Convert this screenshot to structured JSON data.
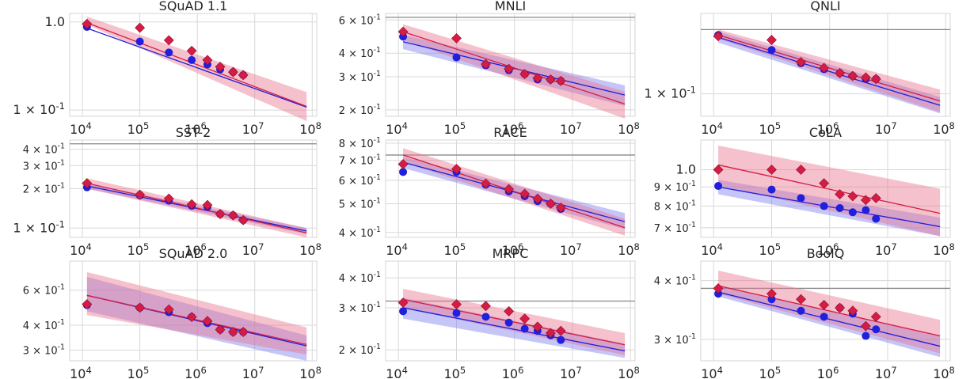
{
  "colors": {
    "blue": "#1f1fdd",
    "red": "#d61c44",
    "red_fill": "#e8758f",
    "blue_fill": "#7f7ff0",
    "grid": "#d8d8d8",
    "baseline": "#888888"
  },
  "chart_data": [
    {
      "type": "scatter",
      "title": "SQuAD 1.1",
      "xscale": "log",
      "yscale": "log",
      "xlim": [
        6000,
        120000000
      ],
      "ylim": [
        0.085,
        1.25
      ],
      "x_ticks": [
        "10^4",
        "10^5",
        "10^6",
        "10^7",
        "10^8"
      ],
      "y_ticks": [
        {
          "value": 1.0,
          "label": "1.0"
        },
        {
          "value": 0.1,
          "label": "1 × 10^-1"
        }
      ],
      "baseline": null,
      "x": [
        12000,
        100000,
        320000,
        800000,
        1500000,
        2500000,
        4200000,
        6300000
      ],
      "series": [
        {
          "color": "blue",
          "marker": "circle",
          "values": [
            0.88,
            0.6,
            0.45,
            0.37,
            0.33,
            0.29,
            0.27,
            0.25
          ]
        },
        {
          "color": "red",
          "marker": "diamond",
          "values": [
            0.95,
            0.86,
            0.62,
            0.47,
            0.37,
            0.31,
            0.27,
            0.25
          ]
        }
      ],
      "fits": [
        {
          "color": "blue",
          "x0": 12000,
          "y0": 0.85,
          "x1": 80000000,
          "y1": 0.108,
          "band_lo": [
            0.85,
            0.108
          ],
          "band_hi": [
            0.85,
            0.108
          ]
        },
        {
          "color": "red",
          "x0": 12000,
          "y0": 0.98,
          "x1": 80000000,
          "y1": 0.11,
          "band_lo": [
            0.93,
            0.075
          ],
          "band_hi": [
            1.15,
            0.16
          ]
        }
      ]
    },
    {
      "type": "scatter",
      "title": "MNLI",
      "xscale": "log",
      "yscale": "log",
      "xlim": [
        6000,
        120000000
      ],
      "ylim": [
        0.185,
        0.65
      ],
      "x_ticks": [
        "10^4",
        "10^5",
        "10^6",
        "10^7",
        "10^8"
      ],
      "y_ticks": [
        {
          "value": 0.6,
          "label": "6 × 10^-1"
        },
        {
          "value": 0.4,
          "label": "4 × 10^-1"
        },
        {
          "value": 0.3,
          "label": "3 × 10^-1"
        },
        {
          "value": 0.2,
          "label": "2 × 10^-1"
        }
      ],
      "baseline": 0.62,
      "x": [
        12000,
        100000,
        320000,
        800000,
        1500000,
        2500000,
        4200000,
        6300000
      ],
      "series": [
        {
          "color": "blue",
          "marker": "circle",
          "values": [
            0.49,
            0.38,
            0.345,
            0.325,
            0.31,
            0.29,
            0.29,
            0.285
          ]
        },
        {
          "color": "red",
          "marker": "diamond",
          "values": [
            0.52,
            0.48,
            0.35,
            0.33,
            0.31,
            0.295,
            0.29,
            0.285
          ]
        }
      ],
      "fits": [
        {
          "color": "blue",
          "x0": 12000,
          "y0": 0.46,
          "x1": 80000000,
          "y1": 0.24,
          "band_lo": [
            0.42,
            0.21
          ],
          "band_hi": [
            0.5,
            0.27
          ]
        },
        {
          "color": "red",
          "x0": 12000,
          "y0": 0.52,
          "x1": 80000000,
          "y1": 0.215,
          "band_lo": [
            0.47,
            0.18
          ],
          "band_hi": [
            0.57,
            0.25
          ]
        }
      ]
    },
    {
      "type": "scatter",
      "title": "QNLI",
      "xscale": "log",
      "yscale": "log",
      "xlim": [
        6000,
        120000000
      ],
      "ylim": [
        0.06,
        0.62
      ],
      "x_ticks": [
        "10^4",
        "10^5",
        "10^6",
        "10^7",
        "10^8"
      ],
      "y_ticks": [
        {
          "value": 0.1,
          "label": "1 × 10^-1"
        }
      ],
      "baseline": 0.43,
      "x": [
        12000,
        100000,
        320000,
        800000,
        1500000,
        2500000,
        4200000,
        6300000
      ],
      "series": [
        {
          "color": "blue",
          "marker": "circle",
          "values": [
            0.38,
            0.27,
            0.2,
            0.175,
            0.16,
            0.15,
            0.14,
            0.14
          ]
        },
        {
          "color": "red",
          "marker": "diamond",
          "values": [
            0.37,
            0.34,
            0.205,
            0.18,
            0.16,
            0.15,
            0.145,
            0.14
          ]
        }
      ],
      "fits": [
        {
          "color": "blue",
          "x0": 12000,
          "y0": 0.36,
          "x1": 80000000,
          "y1": 0.077,
          "band_lo": [
            0.32,
            0.064
          ],
          "band_hi": [
            0.41,
            0.093
          ]
        },
        {
          "color": "red",
          "x0": 12000,
          "y0": 0.38,
          "x1": 80000000,
          "y1": 0.085,
          "band_lo": [
            0.35,
            0.066
          ],
          "band_hi": [
            0.43,
            0.11
          ]
        }
      ]
    },
    {
      "type": "scatter",
      "title": "SST-2",
      "xscale": "log",
      "yscale": "log",
      "xlim": [
        6000,
        120000000
      ],
      "ylim": [
        0.085,
        0.47
      ],
      "x_ticks": [
        "10^4",
        "10^5",
        "10^6",
        "10^7",
        "10^8"
      ],
      "y_ticks": [
        {
          "value": 0.4,
          "label": "4 × 10^-1"
        },
        {
          "value": 0.3,
          "label": "3 × 10^-1"
        },
        {
          "value": 0.2,
          "label": "2 × 10^-1"
        },
        {
          "value": 0.1,
          "label": "1 × 10^-1"
        }
      ],
      "baseline": 0.44,
      "x": [
        12000,
        100000,
        320000,
        800000,
        1500000,
        2500000,
        4200000,
        6300000
      ],
      "series": [
        {
          "color": "blue",
          "marker": "circle",
          "values": [
            0.205,
            0.178,
            0.162,
            0.148,
            0.145,
            0.128,
            0.125,
            0.115
          ]
        },
        {
          "color": "red",
          "marker": "diamond",
          "values": [
            0.22,
            0.18,
            0.168,
            0.152,
            0.15,
            0.128,
            0.125,
            0.115
          ]
        }
      ],
      "fits": [
        {
          "color": "blue",
          "x0": 12000,
          "y0": 0.21,
          "x1": 80000000,
          "y1": 0.095,
          "band_lo": [
            0.2,
            0.09
          ],
          "band_hi": [
            0.22,
            0.1
          ]
        },
        {
          "color": "red",
          "x0": 12000,
          "y0": 0.22,
          "x1": 80000000,
          "y1": 0.092,
          "band_lo": [
            0.2,
            0.085
          ],
          "band_hi": [
            0.24,
            0.1
          ]
        }
      ]
    },
    {
      "type": "scatter",
      "title": "RACE",
      "xscale": "log",
      "yscale": "log",
      "xlim": [
        6000,
        120000000
      ],
      "ylim": [
        0.385,
        0.82
      ],
      "x_ticks": [
        "10^4",
        "10^5",
        "10^6",
        "10^7",
        "10^8"
      ],
      "y_ticks": [
        {
          "value": 0.8,
          "label": "8 × 10^-1"
        },
        {
          "value": 0.7,
          "label": "7 × 10^-1"
        },
        {
          "value": 0.6,
          "label": "6 × 10^-1"
        },
        {
          "value": 0.5,
          "label": "5 × 10^-1"
        },
        {
          "value": 0.4,
          "label": "4 × 10^-1"
        }
      ],
      "baseline": 0.73,
      "x": [
        12000,
        100000,
        320000,
        800000,
        1500000,
        2500000,
        4200000,
        6300000
      ],
      "series": [
        {
          "color": "blue",
          "marker": "circle",
          "values": [
            0.64,
            0.64,
            0.58,
            0.55,
            0.53,
            0.51,
            0.5,
            0.48
          ]
        },
        {
          "color": "red",
          "marker": "diamond",
          "values": [
            0.68,
            0.655,
            0.585,
            0.56,
            0.54,
            0.52,
            0.5,
            0.485
          ]
        }
      ],
      "fits": [
        {
          "color": "blue",
          "x0": 12000,
          "y0": 0.69,
          "x1": 80000000,
          "y1": 0.435,
          "band_lo": [
            0.66,
            0.41
          ],
          "band_hi": [
            0.72,
            0.465
          ]
        },
        {
          "color": "red",
          "x0": 12000,
          "y0": 0.73,
          "x1": 80000000,
          "y1": 0.415,
          "band_lo": [
            0.69,
            0.39
          ],
          "band_hi": [
            0.77,
            0.445
          ]
        }
      ]
    },
    {
      "type": "scatter",
      "title": "CoLA",
      "xscale": "log",
      "yscale": "log",
      "xlim": [
        6000,
        120000000
      ],
      "ylim": [
        0.66,
        1.2
      ],
      "x_ticks": [
        "10^4",
        "10^5",
        "10^6",
        "10^7",
        "10^8"
      ],
      "y_ticks": [
        {
          "value": 1.0,
          "label": "1.0"
        },
        {
          "value": 0.9,
          "label": "9 × 10^-1"
        },
        {
          "value": 0.8,
          "label": "8 × 10^-1"
        },
        {
          "value": 0.7,
          "label": "7 × 10^-1"
        }
      ],
      "baseline": null,
      "x": [
        12000,
        100000,
        320000,
        800000,
        1500000,
        2500000,
        4200000,
        6300000
      ],
      "series": [
        {
          "color": "blue",
          "marker": "circle",
          "values": [
            0.905,
            0.885,
            0.84,
            0.8,
            0.79,
            0.77,
            0.78,
            0.74
          ]
        },
        {
          "color": "red",
          "marker": "diamond",
          "values": [
            1.0,
            1.0,
            1.0,
            0.92,
            0.86,
            0.85,
            0.83,
            0.84
          ]
        }
      ],
      "fits": [
        {
          "color": "blue",
          "x0": 12000,
          "y0": 0.9,
          "x1": 80000000,
          "y1": 0.705,
          "band_lo": [
            0.86,
            0.665
          ],
          "band_hi": [
            0.94,
            0.745
          ]
        },
        {
          "color": "red",
          "x0": 12000,
          "y0": 1.03,
          "x1": 80000000,
          "y1": 0.765,
          "band_lo": [
            0.91,
            0.665
          ],
          "band_hi": [
            1.16,
            0.89
          ]
        }
      ]
    },
    {
      "type": "scatter",
      "title": "SQuAD 2.0",
      "xscale": "log",
      "yscale": "log",
      "xlim": [
        6000,
        120000000
      ],
      "ylim": [
        0.265,
        0.84
      ],
      "x_ticks": [
        "10^4",
        "10^5",
        "10^6",
        "10^7",
        "10^8"
      ],
      "y_ticks": [
        {
          "value": 0.6,
          "label": "6 × 10^-1"
        },
        {
          "value": 0.4,
          "label": "4 × 10^-1"
        },
        {
          "value": 0.3,
          "label": "3 × 10^-1"
        }
      ],
      "baseline": null,
      "x": [
        12000,
        100000,
        320000,
        800000,
        1500000,
        2500000,
        4200000,
        6300000
      ],
      "series": [
        {
          "color": "blue",
          "marker": "circle",
          "values": [
            0.505,
            0.49,
            0.465,
            0.44,
            0.41,
            0.38,
            0.37,
            0.37
          ]
        },
        {
          "color": "red",
          "marker": "diamond",
          "values": [
            0.51,
            0.49,
            0.48,
            0.44,
            0.42,
            0.38,
            0.37,
            0.37
          ]
        }
      ],
      "fits": [
        {
          "color": "blue",
          "x0": 12000,
          "y0": 0.565,
          "x1": 80000000,
          "y1": 0.315,
          "band_lo": [
            0.47,
            0.265
          ],
          "band_hi": [
            0.7,
            0.355
          ]
        },
        {
          "color": "red",
          "x0": 12000,
          "y0": 0.565,
          "x1": 80000000,
          "y1": 0.32,
          "band_lo": [
            0.45,
            0.285
          ],
          "band_hi": [
            0.74,
            0.39
          ]
        }
      ]
    },
    {
      "type": "scatter",
      "title": "MRPC",
      "xscale": "log",
      "yscale": "log",
      "xlim": [
        6000,
        120000000
      ],
      "ylim": [
        0.18,
        0.47
      ],
      "x_ticks": [
        "10^4",
        "10^5",
        "10^6",
        "10^7",
        "10^8"
      ],
      "y_ticks": [
        {
          "value": 0.4,
          "label": "4 × 10^-1"
        },
        {
          "value": 0.3,
          "label": "3 × 10^-1"
        },
        {
          "value": 0.2,
          "label": "2 × 10^-1"
        }
      ],
      "baseline": 0.32,
      "x": [
        12000,
        100000,
        320000,
        800000,
        1500000,
        2500000,
        4200000,
        6300000
      ],
      "series": [
        {
          "color": "blue",
          "marker": "circle",
          "values": [
            0.29,
            0.285,
            0.275,
            0.26,
            0.245,
            0.24,
            0.23,
            0.22
          ]
        },
        {
          "color": "red",
          "marker": "diamond",
          "values": [
            0.315,
            0.31,
            0.305,
            0.29,
            0.27,
            0.25,
            0.235,
            0.24
          ]
        }
      ],
      "fits": [
        {
          "color": "blue",
          "x0": 12000,
          "y0": 0.3,
          "x1": 80000000,
          "y1": 0.198,
          "band_lo": [
            0.27,
            0.185
          ],
          "band_hi": [
            0.33,
            0.212
          ]
        },
        {
          "color": "red",
          "x0": 12000,
          "y0": 0.325,
          "x1": 80000000,
          "y1": 0.21,
          "band_lo": [
            0.3,
            0.19
          ],
          "band_hi": [
            0.36,
            0.235
          ]
        }
      ]
    },
    {
      "type": "scatter",
      "title": "BoolQ",
      "xscale": "log",
      "yscale": "log",
      "xlim": [
        6000,
        120000000
      ],
      "ylim": [
        0.27,
        0.44
      ],
      "x_ticks": [
        "10^4",
        "10^5",
        "10^6",
        "10^7",
        "10^8"
      ],
      "y_ticks": [
        {
          "value": 0.4,
          "label": "4 × 10^-1"
        },
        {
          "value": 0.3,
          "label": "3 × 10^-1"
        }
      ],
      "baseline": 0.385,
      "x": [
        12000,
        100000,
        320000,
        800000,
        1500000,
        2500000,
        4200000,
        6300000
      ],
      "series": [
        {
          "color": "blue",
          "marker": "circle",
          "values": [
            0.375,
            0.365,
            0.345,
            0.335,
            0.35,
            0.34,
            0.305,
            0.315
          ]
        },
        {
          "color": "red",
          "marker": "diamond",
          "values": [
            0.385,
            0.375,
            0.365,
            0.355,
            0.35,
            0.345,
            0.32,
            0.335
          ]
        }
      ],
      "fits": [
        {
          "color": "blue",
          "x0": 12000,
          "y0": 0.378,
          "x1": 80000000,
          "y1": 0.29,
          "band_lo": [
            0.37,
            0.275
          ],
          "band_hi": [
            0.39,
            0.305
          ]
        },
        {
          "color": "red",
          "x0": 12000,
          "y0": 0.39,
          "x1": 80000000,
          "y1": 0.305,
          "band_lo": [
            0.375,
            0.28
          ],
          "band_hi": [
            0.42,
            0.33
          ]
        }
      ]
    }
  ]
}
